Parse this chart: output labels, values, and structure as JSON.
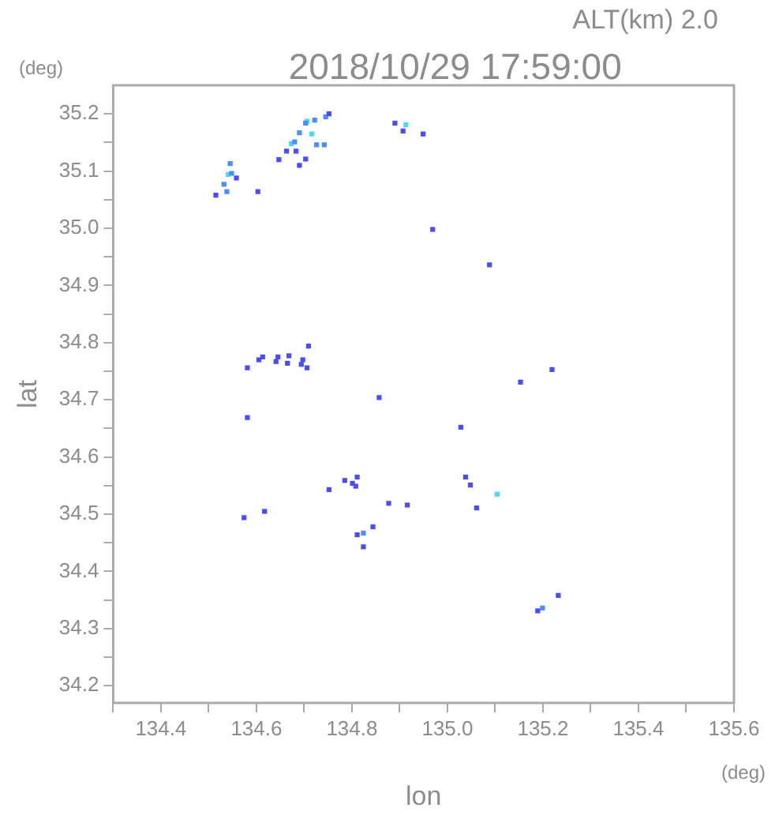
{
  "chart_data": {
    "type": "scatter",
    "title": "2018/10/29 17:59:00",
    "subtitle": "ALT(km) 2.0",
    "xlabel": "lon",
    "ylabel": "lat",
    "annotations": [
      "(deg)",
      "(deg)"
    ],
    "xlim": [
      134.3,
      135.6
    ],
    "ylim": [
      34.17,
      35.25
    ],
    "xticks": [
      {
        "value": 134.3,
        "label": null
      },
      134.4,
      {
        "value": 134.5,
        "label": null
      },
      134.6,
      {
        "value": 134.7,
        "label": null
      },
      134.8,
      {
        "value": 134.9,
        "label": null
      },
      {
        "value": 135,
        "label": "135.0"
      },
      {
        "value": 135.1,
        "label": null
      },
      135.2,
      {
        "value": 135.3,
        "label": null
      },
      135.4,
      {
        "value": 135.5,
        "label": null
      },
      135.6
    ],
    "yticks": [
      34.2,
      {
        "value": 34.25,
        "label": null
      },
      34.3,
      {
        "value": 34.35,
        "label": null
      },
      34.4,
      {
        "value": 34.45,
        "label": null
      },
      34.5,
      {
        "value": 34.55,
        "label": null
      },
      34.6,
      {
        "value": 34.65,
        "label": null
      },
      34.7,
      {
        "value": 34.75,
        "label": null
      },
      34.8,
      {
        "value": 34.85,
        "label": null
      },
      34.9,
      {
        "value": 34.95,
        "label": null
      },
      {
        "value": 35,
        "label": "35.0"
      },
      {
        "value": 35.05,
        "label": null
      },
      35.1,
      {
        "value": 35.15,
        "label": null
      },
      35.2
    ],
    "grid": false,
    "legend": false,
    "marker": "square",
    "series": [
      {
        "color": "#4b4bff",
        "x": [
          134.515,
          134.558,
          134.603,
          134.647,
          134.663,
          134.683,
          134.703,
          134.69,
          134.752,
          134.89,
          134.907,
          134.949,
          134.969,
          135.088,
          134.581,
          134.605,
          134.613,
          134.641,
          134.665,
          134.694,
          134.697,
          134.668,
          134.706,
          134.709,
          134.645,
          135.219,
          135.153,
          134.857,
          134.581,
          135.028,
          134.801,
          134.808,
          134.785,
          134.752,
          134.811,
          134.877,
          134.916,
          135.038,
          135.048,
          135.061,
          134.617,
          134.574,
          134.811,
          134.844,
          134.824,
          135.189,
          135.232
        ],
        "values": [
          35.058,
          35.088,
          35.064,
          35.12,
          35.135,
          35.135,
          35.121,
          35.11,
          35.2,
          35.184,
          35.17,
          35.165,
          34.998,
          34.936,
          34.756,
          34.77,
          34.775,
          34.767,
          34.764,
          34.762,
          34.77,
          34.777,
          34.756,
          34.794,
          34.775,
          34.753,
          34.731,
          34.704,
          34.669,
          34.652,
          34.554,
          34.549,
          34.559,
          34.543,
          34.565,
          34.519,
          34.516,
          34.565,
          34.551,
          34.511,
          34.505,
          34.494,
          34.464,
          34.478,
          34.443,
          34.331,
          34.358
        ]
      },
      {
        "color": "#4b8fff",
        "x": [
          134.532,
          134.548,
          134.545,
          134.538,
          134.68,
          134.69,
          134.703,
          134.722,
          134.745,
          134.726,
          134.742,
          134.824,
          135.199
        ],
        "values": [
          35.077,
          35.096,
          35.113,
          35.064,
          35.151,
          35.167,
          35.184,
          35.189,
          35.195,
          35.146,
          35.146,
          34.467,
          34.336
        ]
      },
      {
        "color": "#4bd8ff",
        "x": [
          134.541,
          134.706,
          134.673,
          134.716,
          134.913,
          135.104
        ],
        "values": [
          35.094,
          35.187,
          35.148,
          35.165,
          35.181,
          34.535
        ]
      }
    ]
  }
}
